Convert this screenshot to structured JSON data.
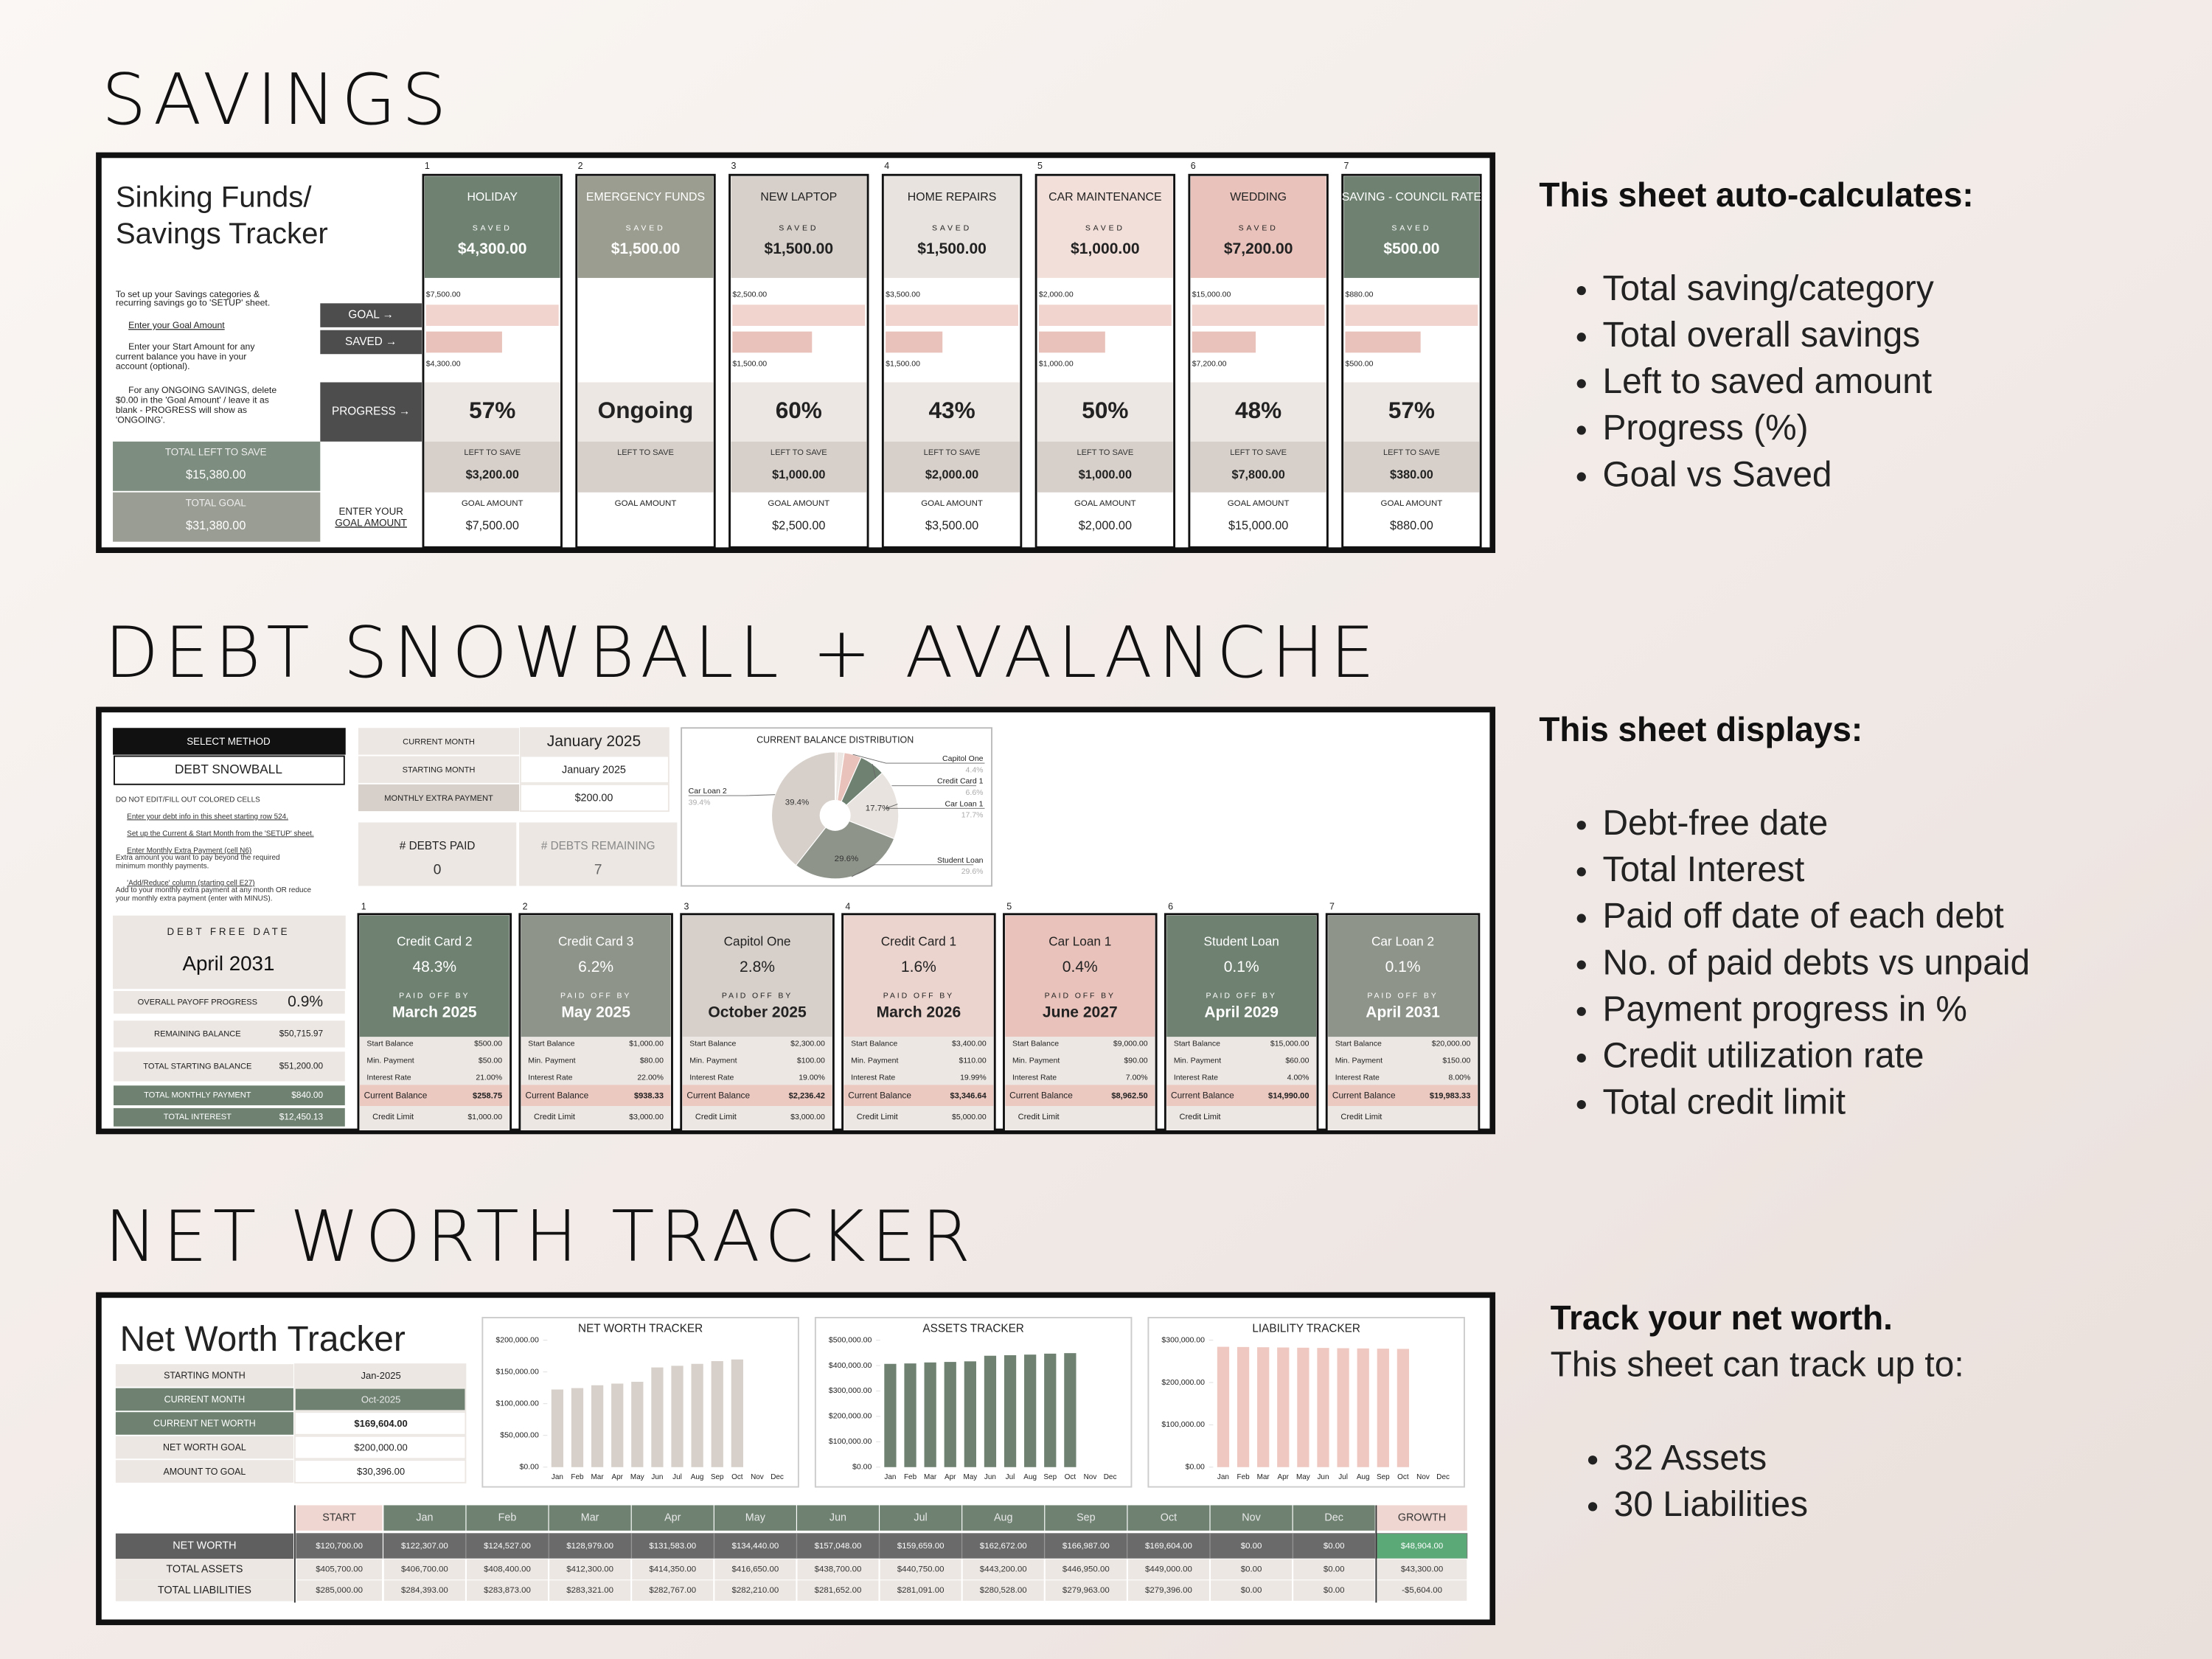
{
  "savings": {
    "heading": "SAVINGS",
    "title_lines": [
      "Sinking Funds/",
      "Savings Tracker"
    ],
    "instructions": [
      "To set up your Savings categories &",
      "recurring savings go to 'SETUP' sheet.",
      "Enter your Goal Amount",
      "Enter your Start Amount for any",
      "current balance you have in your",
      "account (optional).",
      "For any ONGOING SAVINGS, delete",
      "$0.00 in the 'Goal Amount' / leave it as",
      "blank - PROGRESS will show as",
      "'ONGOING'."
    ],
    "row_labels": {
      "goal": "GOAL →",
      "saved": "SAVED →",
      "progress": "PROGRESS →"
    },
    "totals": [
      {
        "label": "TOTAL LEFT TO SAVE",
        "value": "$15,380.00"
      },
      {
        "label": "TOTAL GOAL",
        "value": "$31,380.00"
      }
    ],
    "enter_goal": [
      "ENTER YOUR",
      "GOAL AMOUNT"
    ],
    "card_labels": {
      "saved": "SAVED",
      "left": "LEFT TO SAVE",
      "goal": "GOAL AMOUNT"
    },
    "funds": [
      {
        "number": "1",
        "name": "HOLIDAY",
        "color": "#6f8272",
        "saved": "$4,300.00",
        "goal_axis": "$7,500.00",
        "saved_axis": "$4,300.00",
        "bars": {
          "goal": 7500,
          "saved": 4300
        },
        "progress": "57%",
        "left": "$3,200.00",
        "goal": "$7,500.00"
      },
      {
        "number": "2",
        "name": "EMERGENCY FUNDS",
        "color": "#9a9d8f",
        "saved": "$1,500.00",
        "progress": "Ongoing"
      },
      {
        "number": "3",
        "name": "NEW LAPTOP",
        "color": "#d7d0ca",
        "saved": "$1,500.00",
        "goal_axis": "$2,500.00",
        "saved_axis": "$1,500.00",
        "bars": {
          "goal": 2500,
          "saved": 1500
        },
        "progress": "60%",
        "left": "$1,000.00",
        "goal": "$2,500.00"
      },
      {
        "number": "4",
        "name": "HOME REPAIRS",
        "color": "#e8e3de",
        "saved": "$1,500.00",
        "goal_axis": "$3,500.00",
        "saved_axis": "$1,500.00",
        "bars": {
          "goal": 3500,
          "saved": 1500
        },
        "progress": "43%",
        "left": "$2,000.00",
        "goal": "$3,500.00"
      },
      {
        "number": "5",
        "name": "CAR MAINTENANCE",
        "color": "#f3dfd9",
        "saved": "$1,000.00",
        "goal_axis": "$2,000.00",
        "saved_axis": "$1,000.00",
        "bars": {
          "goal": 2000,
          "saved": 1000
        },
        "progress": "50%",
        "left": "$1,000.00",
        "goal": "$2,000.00"
      },
      {
        "number": "6",
        "name": "WEDDING",
        "color": "#e9c3bb",
        "saved": "$7,200.00",
        "goal_axis": "$15,000.00",
        "saved_axis": "$7,200.00",
        "bars": {
          "goal": 15000,
          "saved": 7200
        },
        "progress": "48%",
        "left": "$7,800.00",
        "goal": "$15,000.00"
      },
      {
        "number": "7",
        "name": "SAVING - COUNCIL RATE",
        "color": "#6f8272",
        "saved": "$500.00",
        "goal_axis": "$880.00",
        "saved_axis": "$500.00",
        "bars": {
          "goal": 880,
          "saved": 500
        },
        "progress": "57%",
        "left": "$380.00",
        "goal": "$880.00"
      }
    ],
    "notes": {
      "title": "This sheet auto-calculates:",
      "items": [
        "Total saving/category",
        "Total overall savings",
        "Left to saved amount",
        "Progress (%)",
        "Goal vs Saved"
      ]
    }
  },
  "debt": {
    "heading": "DEBT SNOWBALL + AVALANCHE",
    "method_label": "SELECT METHOD",
    "method": "DEBT SNOWBALL",
    "instructions": [
      "DO NOT EDIT/FILL OUT COLORED CELLS",
      "Enter your debt info in this sheet starting row 524.",
      "Set up the Current & Start Month from the 'SETUP' sheet.",
      "Enter Monthly Extra Payment (cell N6)",
      "Extra amount you want to pay beyond the required",
      "minimum monthly payments.",
      "'Add/Reduce' column (starting cell E27)",
      "Add to your monthly extra payment at any month OR reduce",
      "your monthly extra payment (enter with MINUS)."
    ],
    "free_date_label": "DEBT FREE DATE",
    "free_date": "April 2031",
    "summary": [
      {
        "label": "OVERALL PAYOFF PROGRESS",
        "value": "0.9%"
      },
      {
        "label": "REMAINING BALANCE",
        "value": "$50,715.97"
      },
      {
        "label": "TOTAL STARTING BALANCE",
        "value": "$51,200.00"
      },
      {
        "label": "TOTAL MONTHLY PAYMENT",
        "value": "$840.00"
      },
      {
        "label": "TOTAL INTEREST",
        "value": "$12,450.13"
      }
    ],
    "months": [
      [
        "CURRENT MONTH",
        "January 2025"
      ],
      [
        "STARTING MONTH",
        "January 2025"
      ],
      [
        "MONTHLY EXTRA PAYMENT",
        "$200.00"
      ]
    ],
    "counts": [
      {
        "label": "# DEBTS  PAID",
        "value": "0"
      },
      {
        "label": "# DEBTS REMAINING",
        "value": "7"
      }
    ],
    "pie": {
      "type": "pie",
      "title": "CURRENT BALANCE DISTRIBUTION",
      "categories": [
        null,
        null,
        "Capitol One",
        "Credit Card 1",
        "Car Loan 1",
        "Student Loan",
        "Car Loan 2"
      ],
      "values": [
        0.5,
        1.8,
        4.4,
        6.6,
        17.7,
        29.6,
        39.4
      ],
      "value_labels": [
        null,
        null,
        "4.4%",
        "6.6%",
        "17.7%",
        "29.6%",
        "39.4%"
      ],
      "colors": [
        "#f3dfd9",
        "#ece7e3",
        "#e9c3bb",
        "#6f8272",
        "#e8e3de",
        "#8e948a",
        "#d7d0ca"
      ]
    },
    "field_labels": {
      "paid_off": "PAID OFF BY",
      "start": "Start Balance",
      "min": "Min. Payment",
      "rate": "Interest Rate",
      "current": "Current Balance",
      "limit": "Credit Limit"
    },
    "debts": [
      {
        "number": "1",
        "name": "Credit Card 2",
        "color": "#6f8272",
        "percent": "48.3%",
        "paid_off": "March 2025",
        "start": "$500.00",
        "min": "$50.00",
        "rate": "21.00%",
        "current": "$258.75",
        "limit": "$1,000.00"
      },
      {
        "number": "2",
        "name": "Credit Card 3",
        "color": "#8e948a",
        "percent": "6.2%",
        "paid_off": "May 2025",
        "start": "$1,000.00",
        "min": "$80.00",
        "rate": "22.00%",
        "current": "$938.33",
        "limit": "$3,000.00"
      },
      {
        "number": "3",
        "name": "Capitol One",
        "color": "#d7d0ca",
        "percent": "2.8%",
        "paid_off": "October 2025",
        "start": "$2,300.00",
        "min": "$100.00",
        "rate": "19.00%",
        "current": "$2,236.42",
        "limit": "$3,000.00"
      },
      {
        "number": "4",
        "name": "Credit Card 1",
        "color": "#ecd4ce",
        "percent": "1.6%",
        "paid_off": "March 2026",
        "start": "$3,400.00",
        "min": "$110.00",
        "rate": "19.99%",
        "current": "$3,346.64",
        "limit": "$5,000.00"
      },
      {
        "number": "5",
        "name": "Car Loan 1",
        "color": "#e9c3bb",
        "percent": "0.4%",
        "paid_off": "June 2027",
        "start": "$9,000.00",
        "min": "$90.00",
        "rate": "7.00%",
        "current": "$8,962.50"
      },
      {
        "number": "6",
        "name": "Student Loan",
        "color": "#6f8272",
        "percent": "0.1%",
        "paid_off": "April 2029",
        "start": "$15,000.00",
        "min": "$60.00",
        "rate": "4.00%",
        "current": "$14,990.00"
      },
      {
        "number": "7",
        "name": "Car Loan 2",
        "color": "#8e948a",
        "percent": "0.1%",
        "paid_off": "April 2031",
        "start": "$20,000.00",
        "min": "$150.00",
        "rate": "8.00%",
        "current": "$19,983.33"
      }
    ],
    "notes": {
      "title": "This sheet displays:",
      "items": [
        "Debt-free date",
        "Total Interest",
        "Paid off date of each debt",
        "No. of paid debts vs unpaid",
        "Payment progress in %",
        "Credit utilization rate",
        "Total credit limit"
      ]
    }
  },
  "net_worth": {
    "heading": "NET WORTH TRACKER",
    "title": "Net Worth Tracker",
    "summary": [
      [
        "STARTING MONTH",
        "Jan-2025"
      ],
      [
        "CURRENT MONTH",
        "Oct-2025"
      ],
      [
        "CURRENT NET WORTH",
        "$169,604.00"
      ],
      [
        "NET WORTH GOAL",
        "$200,000.00"
      ],
      [
        "AMOUNT TO GOAL",
        "$30,396.00"
      ]
    ],
    "charts": [
      {
        "type": "bar",
        "title": "NET WORTH TRACKER",
        "color": "#d7d0ca",
        "categories": [
          "Jan",
          "Feb",
          "Mar",
          "Apr",
          "May",
          "Jun",
          "Jul",
          "Aug",
          "Sep",
          "Oct",
          "Nov",
          "Dec"
        ],
        "values": [
          122307,
          124527,
          128979,
          131583,
          134440,
          157048,
          159659,
          162672,
          166987,
          169604,
          0,
          0
        ],
        "ylim": [
          0,
          200000
        ],
        "yticks": [
          {
            "value": 0,
            "label": "$0.00"
          },
          {
            "value": 50000,
            "label": "$50,000.00"
          },
          {
            "value": 100000,
            "label": "$100,000.00"
          },
          {
            "value": 150000,
            "label": "$150,000.00"
          },
          {
            "value": 200000,
            "label": "$200,000.00"
          }
        ]
      },
      {
        "type": "bar",
        "title": "ASSETS TRACKER",
        "color": "#6f8272",
        "categories": [
          "Jan",
          "Feb",
          "Mar",
          "Apr",
          "May",
          "Jun",
          "Jul",
          "Aug",
          "Sep",
          "Oct",
          "Nov",
          "Dec"
        ],
        "values": [
          406700,
          408400,
          412300,
          414350,
          416650,
          438700,
          440750,
          443200,
          446950,
          449000,
          0,
          0
        ],
        "ylim": [
          0,
          500000
        ],
        "yticks": [
          {
            "value": 0,
            "label": "$0.00"
          },
          {
            "value": 100000,
            "label": "$100,000.00"
          },
          {
            "value": 200000,
            "label": "$200,000.00"
          },
          {
            "value": 300000,
            "label": "$300,000.00"
          },
          {
            "value": 400000,
            "label": "$400,000.00"
          },
          {
            "value": 500000,
            "label": "$500,000.00"
          }
        ]
      },
      {
        "type": "bar",
        "title": "LIABILITY TRACKER",
        "color": "#efc9c1",
        "categories": [
          "Jan",
          "Feb",
          "Mar",
          "Apr",
          "May",
          "Jun",
          "Jul",
          "Aug",
          "Sep",
          "Oct",
          "Nov",
          "Dec"
        ],
        "values": [
          284393,
          283873,
          283321,
          282767,
          282210,
          281652,
          281091,
          280528,
          279963,
          279396,
          0,
          0
        ],
        "ylim": [
          0,
          300000
        ],
        "yticks": [
          {
            "value": 0,
            "label": "$0.00"
          },
          {
            "value": 100000,
            "label": "$100,000.00"
          },
          {
            "value": 200000,
            "label": "$200,000.00"
          },
          {
            "value": 300000,
            "label": "$300,000.00"
          }
        ]
      }
    ],
    "table": {
      "header": [
        "START",
        "Jan",
        "Feb",
        "Mar",
        "Apr",
        "May",
        "Jun",
        "Jul",
        "Aug",
        "Sep",
        "Oct",
        "Nov",
        "Dec",
        "GROWTH"
      ],
      "rows": [
        [
          "NET WORTH",
          "$120,700.00",
          "$122,307.00",
          "$124,527.00",
          "$128,979.00",
          "$131,583.00",
          "$134,440.00",
          "$157,048.00",
          "$159,659.00",
          "$162,672.00",
          "$166,987.00",
          "$169,604.00",
          "$0.00",
          "$0.00",
          "$48,904.00"
        ],
        [
          "TOTAL ASSETS",
          "$405,700.00",
          "$406,700.00",
          "$408,400.00",
          "$412,300.00",
          "$414,350.00",
          "$416,650.00",
          "$438,700.00",
          "$440,750.00",
          "$443,200.00",
          "$446,950.00",
          "$449,000.00",
          "$0.00",
          "$0.00",
          "$43,300.00"
        ],
        [
          "TOTAL LIABILITIES",
          "$285,000.00",
          "$284,393.00",
          "$283,873.00",
          "$283,321.00",
          "$282,767.00",
          "$282,210.00",
          "$281,652.00",
          "$281,091.00",
          "$280,528.00",
          "$279,963.00",
          "$279,396.00",
          "$0.00",
          "$0.00",
          "-$5,604.00"
        ]
      ]
    },
    "notes": {
      "title": "Track your net worth.",
      "subtitle": "This sheet can track up to:",
      "items": [
        "32 Assets",
        "30 Liabilities"
      ]
    }
  }
}
